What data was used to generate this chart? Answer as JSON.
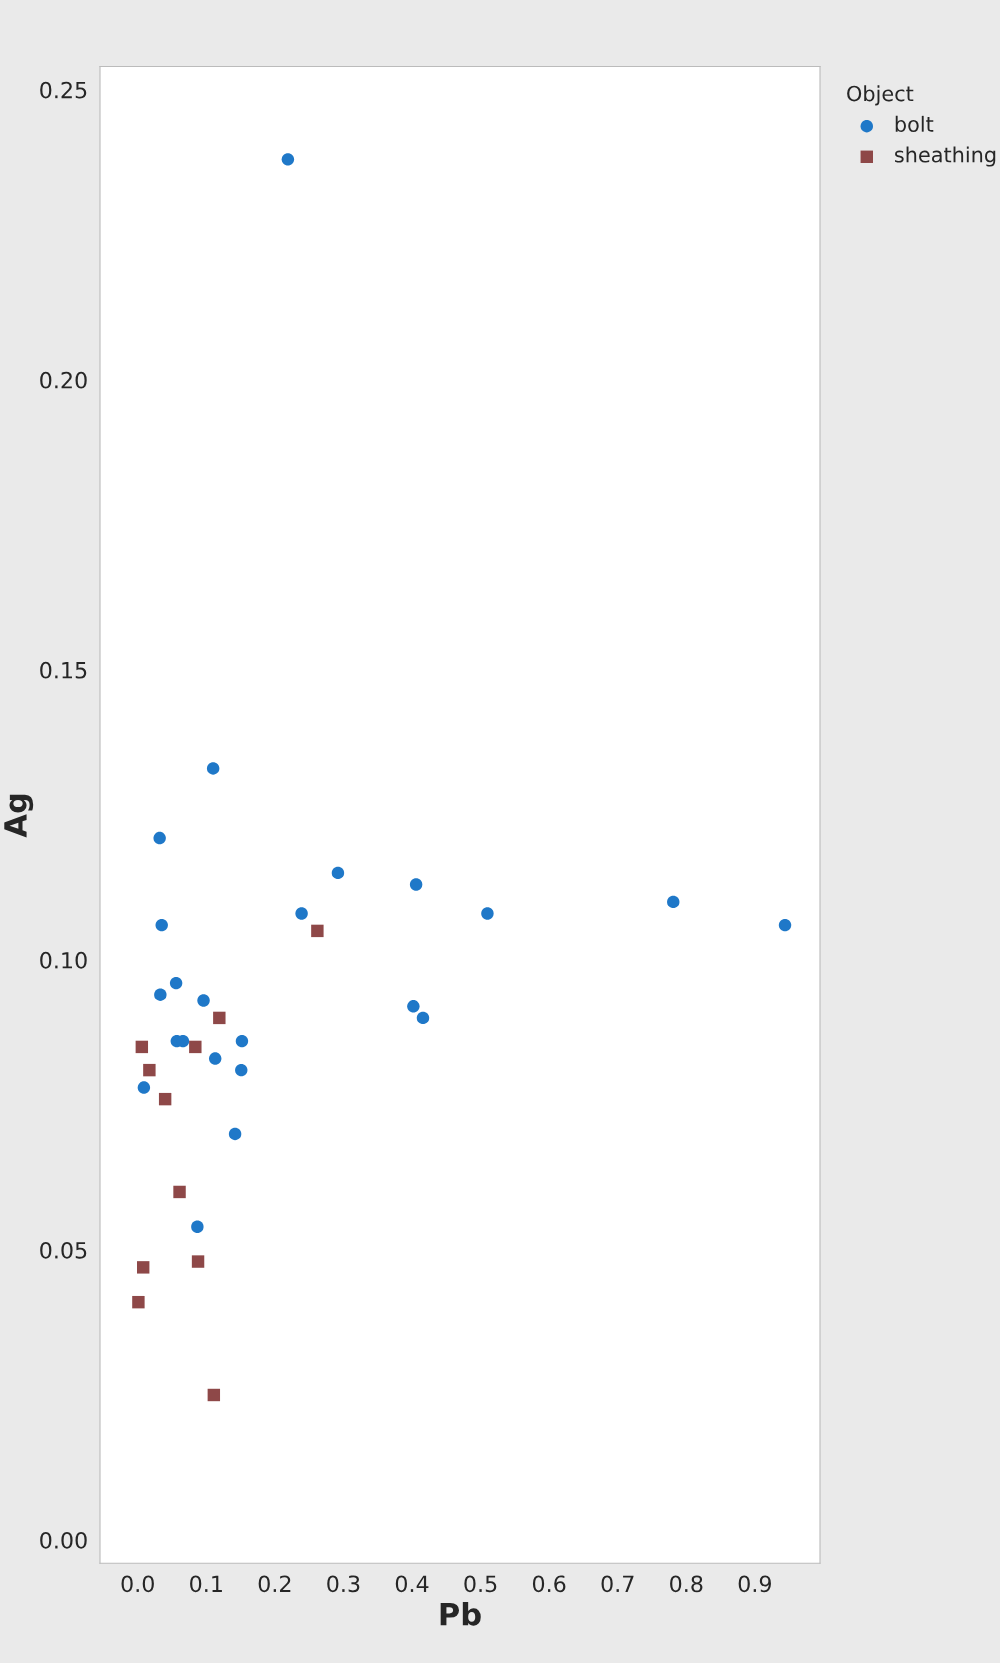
{
  "chart_data": {
    "type": "scatter",
    "xlabel": "Pb",
    "ylabel": "Ag",
    "legend_title": "Object",
    "legend": "top right",
    "xlim": [
      -0.055,
      0.995
    ],
    "ylim": [
      -0.004,
      0.254
    ],
    "xticks": [
      {
        "value": 0,
        "label": "0.0"
      },
      0.1,
      0.2,
      0.3,
      0.4,
      0.5,
      0.6,
      0.7,
      0.8,
      0.9
    ],
    "yticks": [
      {
        "value": 0,
        "label": "0.00"
      },
      0.05,
      {
        "value": 0.1,
        "label": "0.10"
      },
      0.15,
      {
        "value": 0.2,
        "label": "0.20"
      },
      0.25
    ],
    "grid": false,
    "series": [
      {
        "name": "bolt",
        "color": "#1f78c8",
        "marker": "circle",
        "x": [
          0.944,
          0.781,
          0.51,
          0.406,
          0.416,
          0.402,
          0.292,
          0.239,
          0.219,
          0.152,
          0.151,
          0.142,
          0.113,
          0.11,
          0.096,
          0.087,
          0.066,
          0.057,
          0.056,
          0.032,
          0.035,
          0.033,
          0.009
        ],
        "values": [
          0.106,
          0.11,
          0.108,
          0.113,
          0.09,
          0.092,
          0.115,
          0.108,
          0.238,
          0.086,
          0.081,
          0.07,
          0.083,
          0.133,
          0.093,
          0.054,
          0.086,
          0.086,
          0.096,
          0.121,
          0.106,
          0.094,
          0.078
        ]
      },
      {
        "name": "sheathing",
        "color": "#8e4848",
        "marker": "square",
        "x": [
          0.262,
          0.119,
          0.084,
          0.088,
          0.111,
          0.061,
          0.04,
          0.017,
          0.006,
          0.008,
          0.001
        ],
        "values": [
          0.105,
          0.09,
          0.085,
          0.048,
          0.025,
          0.06,
          0.076,
          0.081,
          0.085,
          0.047,
          0.041
        ]
      }
    ]
  }
}
